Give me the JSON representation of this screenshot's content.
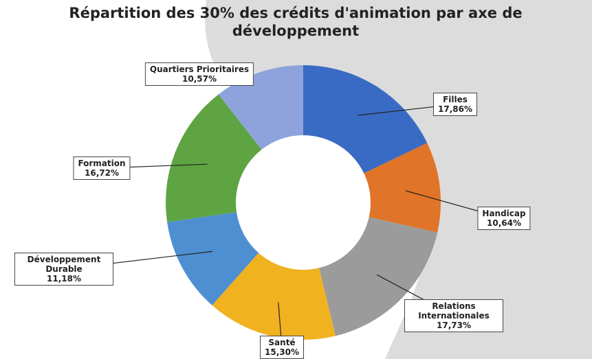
{
  "chart_data": {
    "type": "donut",
    "title": "Répartition des 30% des crédits d'animation par axe de développement",
    "categories": [
      "Filles",
      "Handicap",
      "Relations Internationales",
      "Santé",
      "Développement Durable",
      "Formation",
      "Quartiers Prioritaires"
    ],
    "values": [
      17.86,
      10.64,
      17.73,
      15.3,
      11.18,
      16.72,
      10.57
    ],
    "value_labels": [
      "17,86%",
      "10,64%",
      "17,73%",
      "15,30%",
      "11,18%",
      "16,72%",
      "10,57%"
    ],
    "colors": [
      "#3a6bc4",
      "#e07428",
      "#9b9b9b",
      "#f0b21f",
      "#4e8fd1",
      "#5ea443",
      "#8ea3dc"
    ]
  }
}
